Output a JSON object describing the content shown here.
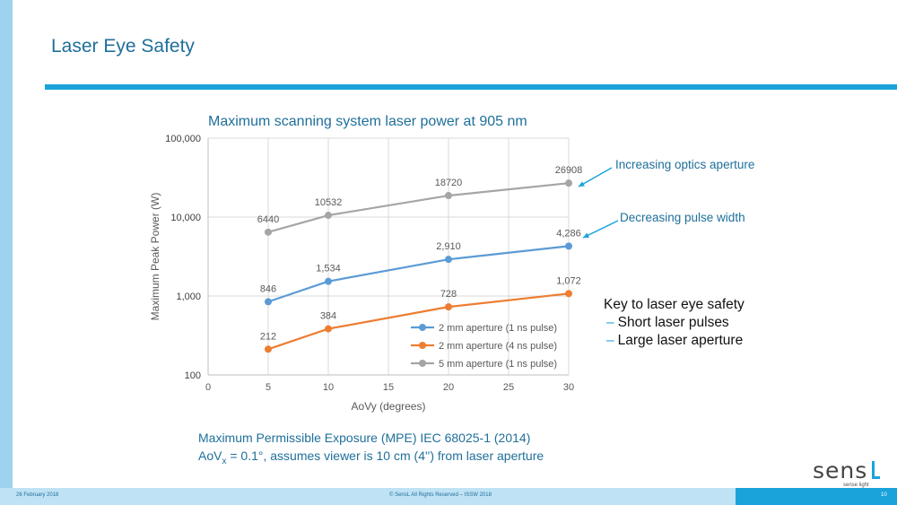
{
  "slide": {
    "title": "Laser Eye Safety",
    "chart_title": "Maximum scanning system laser power at 905 nm",
    "annotation_optics": "Increasing optics aperture",
    "annotation_pulse": "Decreasing pulse width",
    "key_title": "Key to laser eye safety",
    "key_items": [
      "Short laser pulses",
      "Large laser aperture"
    ],
    "key_dash": "–",
    "footnote_line1": "Maximum Permissible Exposure (MPE) IEC 68025-1 (2014)",
    "footnote_line2_prefix": "AoV",
    "footnote_line2_sub": "x",
    "footnote_line2_suffix": " = 0.1°, assumes viewer is 10 cm (4'') from laser aperture",
    "logo_text": "sens",
    "logo_sub": "sense light",
    "footer_date": "26 February 2018",
    "footer_copyright": "© SensL All Rights Reserved – ISSW 2018",
    "page_number": "10"
  },
  "colors": {
    "title": "#1f6f9a",
    "accent": "#1aa3db",
    "series_2mm_1ns": "#5b9bd5",
    "series_2mm_4ns": "#ed7d31",
    "series_5mm_1ns": "#a5a5a5"
  },
  "chart_data": {
    "type": "line",
    "title": "Maximum scanning system laser power at 905 nm",
    "xlabel": "AoVy (degrees)",
    "ylabel": "Maximum Peak Power (W)",
    "xlim": [
      0,
      30
    ],
    "xticks": [
      0,
      5,
      10,
      15,
      20,
      25,
      30
    ],
    "ylim": [
      100,
      100000
    ],
    "yscale": "log",
    "yticks": [
      100,
      1000,
      10000,
      100000
    ],
    "ytick_labels": [
      "100",
      "1,000",
      "10,000",
      "100,000"
    ],
    "grid": true,
    "legend_position": "bottom-right",
    "series": [
      {
        "name": "2 mm aperture (1 ns pulse)",
        "color": "#5b9bd5",
        "x": [
          5,
          10,
          20,
          30
        ],
        "values": [
          846,
          1534,
          2910,
          4286
        ],
        "labels": [
          "846",
          "1,534",
          "2,910",
          "4,286"
        ]
      },
      {
        "name": "2 mm aperture (4 ns pulse)",
        "color": "#ed7d31",
        "x": [
          5,
          10,
          20,
          30
        ],
        "values": [
          212,
          384,
          728,
          1072
        ],
        "labels": [
          "212",
          "384",
          "728",
          "1,072"
        ]
      },
      {
        "name": "5 mm aperture (1 ns pulse)",
        "color": "#a5a5a5",
        "x": [
          5,
          10,
          20,
          30
        ],
        "values": [
          6440,
          10532,
          18720,
          26908
        ],
        "labels": [
          "6440",
          "10532",
          "18720",
          "26908"
        ]
      }
    ]
  }
}
